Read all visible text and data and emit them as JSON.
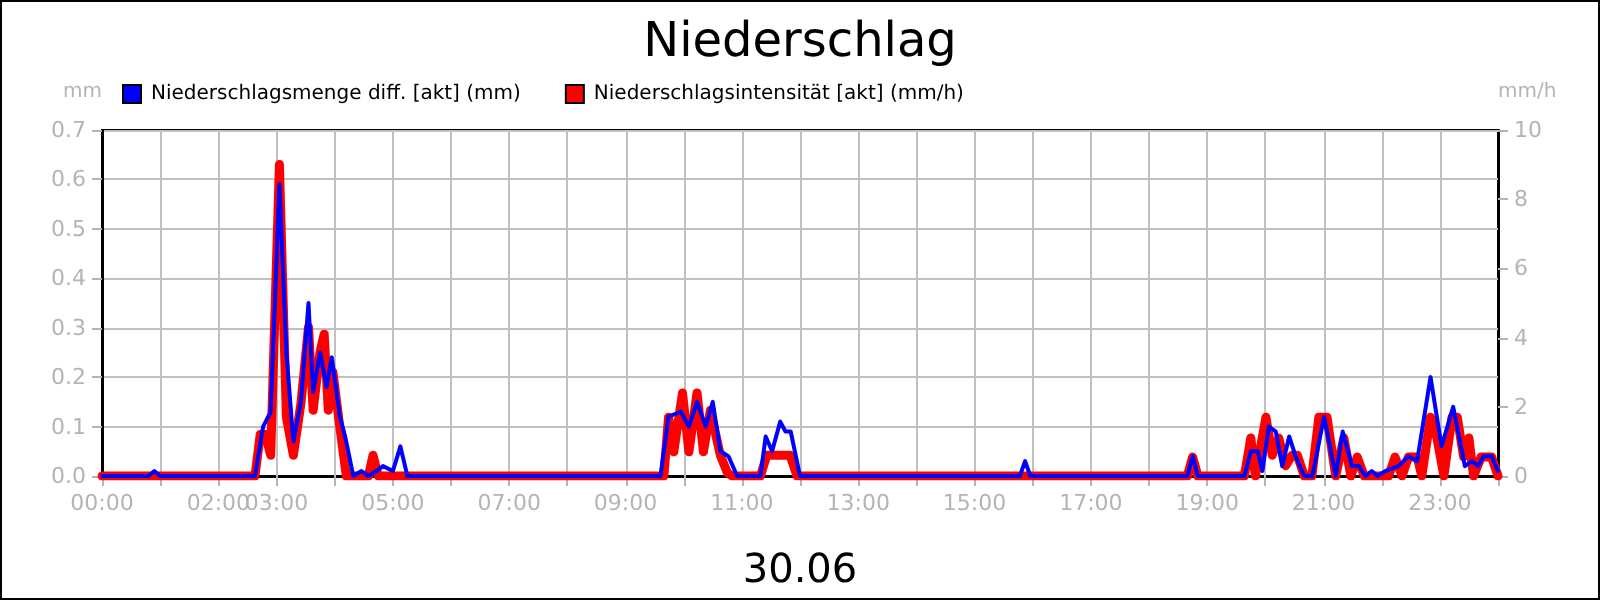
{
  "chart_data": {
    "type": "line",
    "title": "Niederschlag",
    "xlabel": "30.06",
    "ylabel": "mm",
    "y2label": "mm/h",
    "xlim": [
      0,
      24
    ],
    "xticks": [
      {
        "value": 0,
        "label": "00:00"
      },
      {
        "value": 1,
        "label": null
      },
      {
        "value": 2,
        "label": "02:00"
      },
      {
        "value": 3,
        "label": "03:00"
      },
      {
        "value": 4,
        "label": null
      },
      {
        "value": 5,
        "label": "05:00"
      },
      {
        "value": 6,
        "label": null
      },
      {
        "value": 7,
        "label": "07:00"
      },
      {
        "value": 8,
        "label": null
      },
      {
        "value": 9,
        "label": "09:00"
      },
      {
        "value": 10,
        "label": null
      },
      {
        "value": 11,
        "label": "11:00"
      },
      {
        "value": 12,
        "label": null
      },
      {
        "value": 13,
        "label": "13:00"
      },
      {
        "value": 14,
        "label": null
      },
      {
        "value": 15,
        "label": "15:00"
      },
      {
        "value": 16,
        "label": null
      },
      {
        "value": 17,
        "label": "17:00"
      },
      {
        "value": 18,
        "label": null
      },
      {
        "value": 19,
        "label": "19:00"
      },
      {
        "value": 20,
        "label": null
      },
      {
        "value": 21,
        "label": "21:00"
      },
      {
        "value": 22,
        "label": null
      },
      {
        "value": 23,
        "label": "23:00"
      },
      {
        "value": 24,
        "label": null
      }
    ],
    "ylim": [
      0,
      0.7
    ],
    "yticks": [
      {
        "value": 0,
        "label": "0.0"
      },
      0.1,
      0.2,
      0.3,
      0.4,
      0.5,
      0.6,
      0.7
    ],
    "y2lim": [
      0,
      10
    ],
    "y2ticks": [
      0,
      2,
      4,
      6,
      8,
      10
    ],
    "grid": true,
    "legend": "top left",
    "marker": "none",
    "line_style": "solid",
    "series": [
      {
        "name": "Niederschlagsmenge diff. [akt] (mm)",
        "color": "#0000ff",
        "x": [
          0,
          0.8,
          0.9,
          1.0,
          2.63,
          2.77,
          2.9,
          3.05,
          3.17,
          3.29,
          3.42,
          3.55,
          3.63,
          3.75,
          3.86,
          3.95,
          4.09,
          4.18,
          4.32,
          4.46,
          4.58,
          4.72,
          4.83,
          5.0,
          5.13,
          5.25,
          9.6,
          9.74,
          9.95,
          10.09,
          10.23,
          10.38,
          10.5,
          10.63,
          10.77,
          10.92,
          11.32,
          11.41,
          11.52,
          11.66,
          11.75,
          11.84,
          12.0,
          15.78,
          15.87,
          15.96,
          18.66,
          18.75,
          18.84,
          19.64,
          19.75,
          19.87,
          19.95,
          20.06,
          20.18,
          20.29,
          20.41,
          20.52,
          20.67,
          20.81,
          21.01,
          21.21,
          21.33,
          21.49,
          21.61,
          21.72,
          21.83,
          21.93,
          22.06,
          22.29,
          22.46,
          22.61,
          22.84,
          23.03,
          23.23,
          23.43,
          23.55,
          23.66,
          23.75,
          23.89,
          24.0
        ],
        "values": [
          0,
          0,
          0.01,
          0,
          0,
          0.1,
          0.13,
          0.59,
          0.25,
          0.07,
          0.15,
          0.35,
          0.17,
          0.25,
          0.18,
          0.24,
          0.12,
          0.08,
          0,
          0.01,
          0,
          0.01,
          0.02,
          0.01,
          0.06,
          0,
          0,
          0.12,
          0.13,
          0.1,
          0.15,
          0.1,
          0.15,
          0.05,
          0.04,
          0,
          0,
          0.08,
          0.05,
          0.11,
          0.09,
          0.09,
          0,
          0,
          0.03,
          0,
          0,
          0.04,
          0,
          0,
          0.05,
          0.05,
          0.01,
          0.1,
          0.09,
          0.02,
          0.08,
          0.04,
          0,
          0,
          0.12,
          0,
          0.09,
          0.02,
          0.02,
          0,
          0.01,
          0,
          0.01,
          0.02,
          0.04,
          0.03,
          0.2,
          0.06,
          0.14,
          0.02,
          0.03,
          0.02,
          0.04,
          0.04,
          0.01
        ]
      },
      {
        "name": "Niederschlagsintensität [akt] (mm/h)",
        "color": "#ff0000",
        "axis": "y2",
        "x": [
          0,
          2.63,
          2.72,
          2.81,
          2.9,
          3.05,
          3.17,
          3.29,
          3.42,
          3.55,
          3.63,
          3.75,
          3.82,
          3.89,
          3.97,
          4.09,
          4.2,
          4.58,
          4.66,
          4.75,
          9.66,
          9.74,
          9.83,
          9.98,
          10.09,
          10.23,
          10.34,
          10.46,
          10.63,
          10.75,
          10.83,
          11.32,
          11.43,
          11.83,
          11.95,
          18.66,
          18.75,
          18.84,
          19.64,
          19.75,
          19.83,
          20.01,
          20.12,
          20.23,
          20.35,
          20.46,
          20.55,
          20.67,
          20.8,
          20.92,
          21.06,
          21.21,
          21.35,
          21.47,
          21.58,
          21.7,
          22.12,
          22.23,
          22.35,
          22.46,
          22.61,
          22.69,
          22.84,
          22.95,
          23.07,
          23.21,
          23.3,
          23.41,
          23.5,
          23.58,
          23.71,
          23.89,
          24.0
        ],
        "values": [
          0,
          0,
          1.2,
          1.2,
          0.6,
          9.0,
          1.7,
          0.6,
          2.1,
          4.3,
          1.9,
          3.6,
          4.1,
          1.9,
          3.0,
          1.4,
          0,
          0,
          0.6,
          0,
          0,
          1.7,
          0.7,
          2.4,
          0.7,
          2.4,
          0.7,
          1.9,
          0.6,
          0.1,
          0,
          0,
          0.6,
          0.6,
          0,
          0,
          0.55,
          0,
          0,
          1.1,
          0,
          1.7,
          0.6,
          1.1,
          0.3,
          0.6,
          0.6,
          0,
          0,
          1.7,
          1.7,
          0,
          1.1,
          0,
          0.55,
          0,
          0,
          0.55,
          0,
          0.55,
          0.55,
          0,
          1.7,
          1.1,
          0,
          1.7,
          1.7,
          0.55,
          1.1,
          0,
          0.55,
          0.55,
          0
        ]
      }
    ]
  }
}
